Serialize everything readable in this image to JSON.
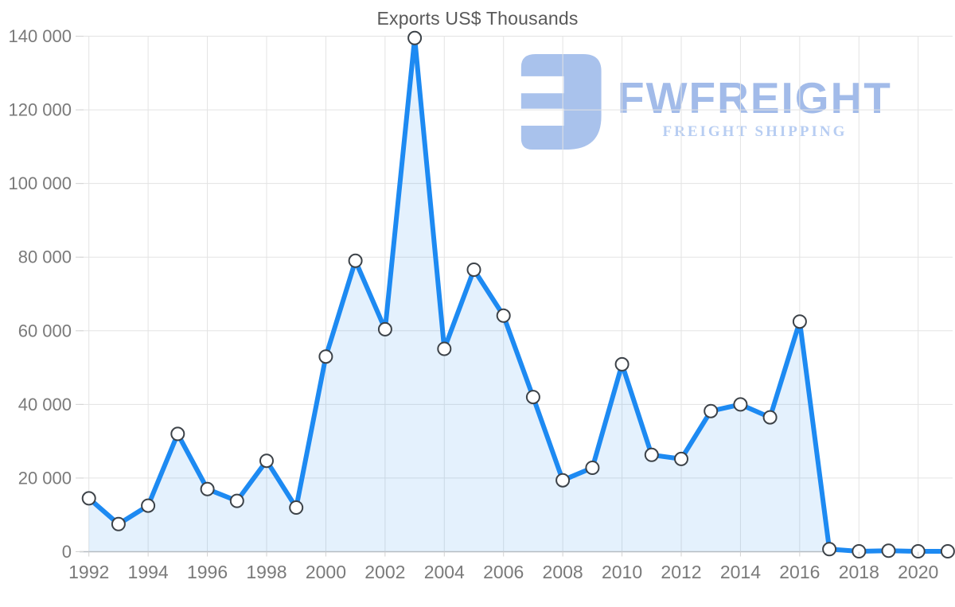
{
  "chart_data": {
    "type": "area",
    "title": "Exports US$ Thousands",
    "xlabel": "",
    "ylabel": "",
    "x": [
      1992,
      1993,
      1994,
      1995,
      1996,
      1997,
      1998,
      1999,
      2000,
      2001,
      2002,
      2003,
      2004,
      2005,
      2006,
      2007,
      2008,
      2009,
      2010,
      2011,
      2012,
      2013,
      2014,
      2015,
      2016,
      2017,
      2018,
      2019,
      2020,
      2021
    ],
    "values": [
      14500,
      7500,
      12500,
      32000,
      17000,
      13800,
      24700,
      12000,
      53000,
      79000,
      60400,
      139500,
      55100,
      76600,
      64100,
      42000,
      19400,
      22800,
      50900,
      26300,
      25200,
      38200,
      40000,
      36500,
      62500,
      700,
      100,
      250,
      100,
      100
    ],
    "ylim": [
      0,
      140000
    ],
    "ytick_values": [
      0,
      20000,
      40000,
      60000,
      80000,
      100000,
      120000,
      140000
    ],
    "ytick_labels": [
      "0",
      "20 000",
      "40 000",
      "60 000",
      "80 000",
      "100 000",
      "120 000",
      "140 000"
    ],
    "xtick_years": [
      1992,
      1994,
      1996,
      1998,
      2000,
      2002,
      2004,
      2006,
      2008,
      2010,
      2012,
      2014,
      2016,
      2018,
      2020
    ],
    "xtick_labels": [
      "1992",
      "1994",
      "1996",
      "1998",
      "2000",
      "2002",
      "2004",
      "2006",
      "2008",
      "2010",
      "2012",
      "2014",
      "2016",
      "2018",
      "2020"
    ],
    "grid": true,
    "legend": "none",
    "colors": {
      "line": "#1d8af2",
      "area_fill": "rgba(29,138,242,0.12)",
      "marker_fill": "#ffffff",
      "marker_stroke": "#3c4248",
      "grid": "#e3e3e3",
      "axis": "#b6bcc2",
      "tick": "#d2d2d2",
      "label": "#7a7a7a",
      "title": "#595959"
    }
  },
  "watermark": {
    "brand": "FWFREIGHT",
    "tagline": "FREIGHT SHIPPING",
    "brand_color": "#a2bbe9",
    "tagline_color": "#b7cdf2",
    "icon_color": "#a9c2ec",
    "icon_name": "fwfreight-logo-icon"
  }
}
